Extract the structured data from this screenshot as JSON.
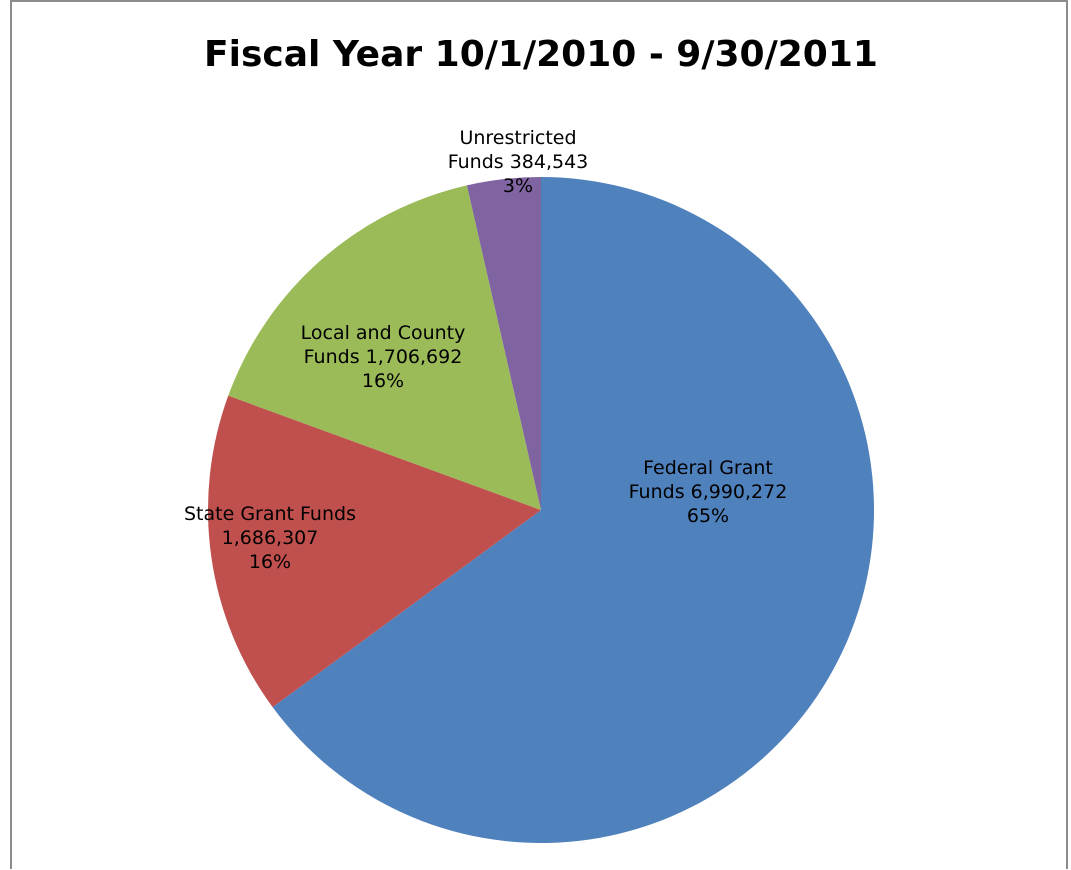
{
  "chart_data": {
    "type": "pie",
    "title": "Fiscal Year 10/1/2010 - 9/30/2011",
    "start_angle_deg": 0,
    "direction": "clockwise",
    "slices": [
      {
        "name": "Federal Grant Funds",
        "value": 6990272,
        "percent": 65,
        "color": "#4F81BD",
        "label_lines": [
          "Federal Grant",
          "Funds 6,990,272",
          "65%"
        ]
      },
      {
        "name": "State Grant Funds",
        "value": 1686307,
        "percent": 16,
        "color": "#C0504D",
        "label_lines": [
          "State Grant Funds",
          "1,686,307",
          "16%"
        ]
      },
      {
        "name": "Local and County Funds",
        "value": 1706692,
        "percent": 16,
        "color": "#9BBB59",
        "label_lines": [
          "Local and County",
          "Funds 1,706,692",
          "16%"
        ]
      },
      {
        "name": "Unrestricted Funds",
        "value": 384543,
        "percent": 3,
        "color": "#8064A2",
        "label_lines": [
          "Unrestricted",
          "Funds 384,543",
          "3%"
        ]
      }
    ]
  }
}
